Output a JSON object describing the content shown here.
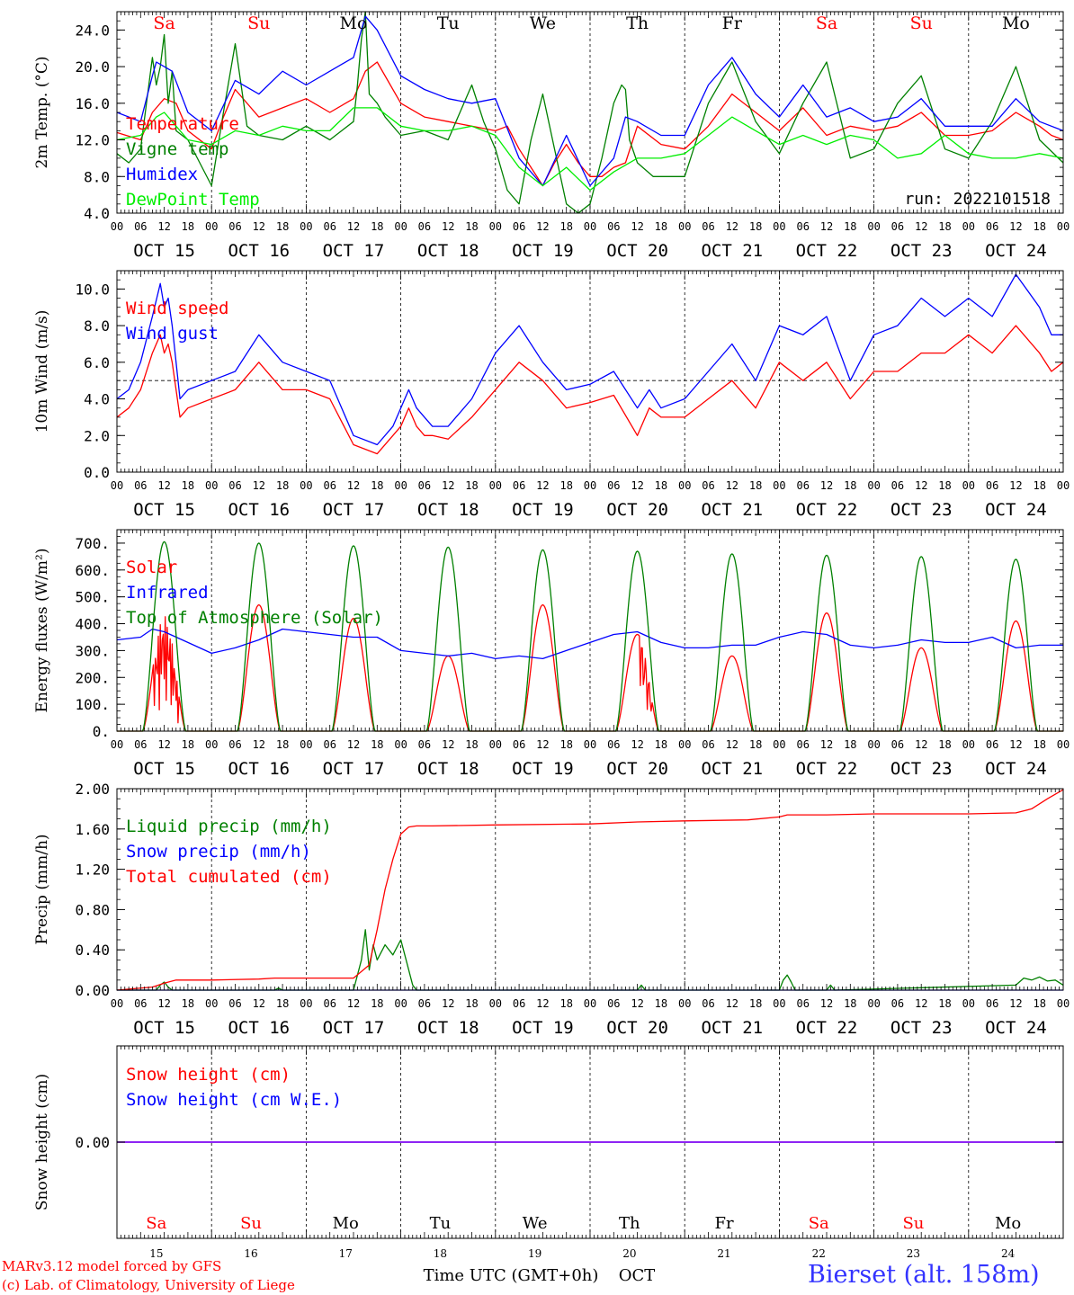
{
  "run_label": "run: 2022101518",
  "days": [
    "Sa",
    "Su",
    "Mo",
    "Tu",
    "We",
    "Th",
    "Fr",
    "Sa",
    "Su",
    "Mo"
  ],
  "weekend_idx": [
    0,
    1,
    7,
    8
  ],
  "date_labels": [
    "OCT 15",
    "OCT 16",
    "OCT 17",
    "OCT 18",
    "OCT 19",
    "OCT 20",
    "OCT 21",
    "OCT 22",
    "OCT 23",
    "OCT 24"
  ],
  "day_numbers": [
    "15",
    "16",
    "17",
    "18",
    "19",
    "20",
    "21",
    "22",
    "23",
    "24"
  ],
  "hour_labels": [
    "00",
    "06",
    "12",
    "18"
  ],
  "last_hour_label": "00",
  "xlabel": "Time UTC (GMT+0h)",
  "xlabel_month": "OCT",
  "footer_model": "MARv3.12 model forced by GFS",
  "footer_lab": "(c) Lab. of Climatology, University of Liege",
  "station": "Bierset (alt. 158m)",
  "colors": {
    "red": "#ff0000",
    "green": "#008000",
    "blue": "#0000ff",
    "lightgreen": "#00ee00",
    "purple": "#7f00ff",
    "station": "#3333ff"
  },
  "chart_data": [
    {
      "type": "line",
      "ylabel": "2m Temp. (°C)",
      "ylim": [
        4.0,
        26.0
      ],
      "yticks": [
        "4.0",
        "8.0",
        "12.0",
        "16.0",
        "20.0",
        "24.0"
      ],
      "x_unit": "hours since OCT 15 00 UTC",
      "series": [
        {
          "name": "Temperature",
          "color": "red",
          "x": [
            0,
            6,
            9,
            12,
            15,
            18,
            24,
            27,
            30,
            36,
            39,
            42,
            48,
            54,
            60,
            63,
            66,
            72,
            78,
            84,
            90,
            96,
            99,
            102,
            105,
            108,
            111,
            114,
            117,
            120,
            123,
            126,
            129,
            132,
            138,
            144,
            150,
            156,
            162,
            168,
            174,
            180,
            186,
            192,
            198,
            204,
            210,
            216,
            222,
            228,
            234,
            237,
            240
          ],
          "y": [
            12.8,
            12.0,
            15.0,
            16.5,
            16.0,
            13.0,
            11.0,
            14.5,
            17.5,
            14.5,
            15.0,
            15.5,
            16.5,
            15.0,
            16.5,
            19.5,
            20.5,
            16.0,
            14.5,
            14.0,
            13.5,
            13.0,
            13.5,
            11.0,
            9.0,
            7.0,
            9.5,
            11.5,
            9.5,
            8.0,
            8.0,
            9.0,
            9.5,
            13.5,
            11.5,
            11.0,
            13.5,
            17.0,
            15.0,
            13.0,
            15.5,
            12.5,
            13.5,
            13.0,
            13.5,
            15.0,
            12.5,
            12.5,
            13.0,
            15.0,
            13.5,
            12.5,
            12.0
          ]
        },
        {
          "name": "Vigne temp",
          "color": "green",
          "x": [
            0,
            3,
            6,
            9,
            10,
            11,
            12,
            13,
            14,
            15,
            18,
            24,
            27,
            30,
            33,
            36,
            42,
            48,
            54,
            60,
            61,
            62,
            63,
            64,
            65,
            66,
            68,
            72,
            78,
            84,
            90,
            93,
            96,
            99,
            102,
            105,
            108,
            111,
            114,
            117,
            120,
            123,
            126,
            128,
            129,
            130,
            132,
            136,
            144,
            150,
            156,
            162,
            168,
            174,
            180,
            186,
            192,
            198,
            204,
            210,
            216,
            222,
            228,
            234,
            240
          ],
          "y": [
            10.5,
            9.5,
            11.0,
            21.0,
            18.0,
            20.0,
            23.5,
            16.0,
            19.5,
            13.0,
            12.0,
            7.0,
            15.0,
            22.5,
            13.5,
            12.5,
            12.0,
            13.5,
            12.0,
            14.0,
            18.0,
            23.0,
            26.0,
            17.0,
            16.5,
            16.0,
            14.5,
            12.5,
            13.0,
            12.0,
            18.0,
            14.0,
            11.0,
            6.5,
            5.0,
            12.0,
            17.0,
            11.0,
            5.0,
            4.0,
            5.0,
            10.0,
            16.0,
            18.0,
            17.5,
            12.0,
            9.5,
            8.0,
            8.0,
            16.0,
            20.5,
            14.0,
            10.5,
            16.0,
            20.5,
            10.0,
            11.0,
            16.0,
            19.0,
            11.0,
            10.0,
            14.0,
            20.0,
            12.0,
            9.5
          ]
        },
        {
          "name": "Humidex",
          "color": "blue",
          "x": [
            0,
            6,
            9,
            10,
            12,
            14,
            18,
            24,
            30,
            36,
            42,
            48,
            54,
            60,
            63,
            66,
            72,
            78,
            84,
            90,
            96,
            102,
            108,
            114,
            120,
            126,
            129,
            132,
            138,
            144,
            150,
            156,
            162,
            168,
            174,
            180,
            186,
            192,
            198,
            204,
            210,
            216,
            222,
            228,
            234,
            240
          ],
          "y": [
            15.0,
            14.0,
            19.0,
            20.5,
            20.0,
            19.5,
            15.0,
            13.0,
            18.5,
            17.0,
            19.5,
            18.0,
            19.5,
            21.0,
            25.5,
            24.0,
            19.0,
            17.5,
            16.5,
            16.0,
            16.5,
            10.0,
            7.0,
            12.5,
            7.0,
            10.0,
            14.5,
            14.0,
            12.5,
            12.5,
            18.0,
            21.0,
            17.0,
            14.5,
            18.0,
            14.5,
            15.5,
            14.0,
            14.5,
            16.5,
            13.5,
            13.5,
            13.5,
            16.5,
            14.0,
            13.0
          ]
        },
        {
          "name": "DewPoint Temp",
          "color": "lightgreen",
          "x": [
            0,
            6,
            10,
            12,
            14,
            18,
            24,
            30,
            36,
            42,
            48,
            54,
            60,
            66,
            72,
            78,
            84,
            90,
            96,
            102,
            108,
            114,
            120,
            126,
            132,
            138,
            144,
            150,
            156,
            162,
            168,
            174,
            180,
            186,
            192,
            198,
            204,
            210,
            216,
            222,
            228,
            234,
            240
          ],
          "y": [
            12.0,
            12.5,
            14.5,
            15.0,
            14.0,
            12.0,
            11.5,
            13.0,
            12.5,
            13.5,
            13.0,
            13.0,
            15.5,
            15.5,
            13.5,
            13.0,
            13.0,
            13.5,
            12.5,
            9.0,
            7.0,
            9.0,
            6.5,
            8.5,
            10.0,
            10.0,
            10.5,
            12.5,
            14.5,
            13.0,
            11.5,
            12.5,
            11.5,
            12.5,
            12.0,
            10.0,
            10.5,
            12.5,
            10.5,
            10.0,
            10.0,
            10.5,
            10.0
          ]
        }
      ],
      "dashed_lines_y": []
    },
    {
      "type": "line",
      "ylabel": "10m Wind (m/s)",
      "ylim": [
        0.0,
        11.0
      ],
      "yticks": [
        "0.0",
        "2.0",
        "4.0",
        "6.0",
        "8.0",
        "10.0"
      ],
      "dashed_lines_y": [
        5.0
      ],
      "series": [
        {
          "name": "Wind speed",
          "color": "red",
          "x": [
            0,
            3,
            6,
            9,
            11,
            12,
            13,
            14,
            16,
            18,
            24,
            30,
            36,
            42,
            48,
            54,
            60,
            66,
            70,
            72,
            74,
            76,
            78,
            80,
            84,
            90,
            96,
            102,
            108,
            114,
            120,
            126,
            132,
            135,
            138,
            144,
            150,
            156,
            162,
            168,
            174,
            180,
            186,
            192,
            198,
            204,
            210,
            216,
            222,
            228,
            234,
            237,
            240
          ],
          "y": [
            3.0,
            3.5,
            4.5,
            6.5,
            7.5,
            6.5,
            7.0,
            6.0,
            3.0,
            3.5,
            4.0,
            4.5,
            6.0,
            4.5,
            4.5,
            4.0,
            1.5,
            1.0,
            2.0,
            2.5,
            3.5,
            2.5,
            2.0,
            2.0,
            1.8,
            3.0,
            4.5,
            6.0,
            5.0,
            3.5,
            3.8,
            4.2,
            2.0,
            3.5,
            3.0,
            3.0,
            4.0,
            5.0,
            3.5,
            6.0,
            5.0,
            6.0,
            4.0,
            5.5,
            5.5,
            6.5,
            6.5,
            7.5,
            6.5,
            8.0,
            6.5,
            5.5,
            6.0
          ]
        },
        {
          "name": "Wind gust",
          "color": "blue",
          "x": [
            0,
            3,
            6,
            9,
            11,
            12,
            13,
            14,
            16,
            18,
            24,
            30,
            36,
            42,
            48,
            54,
            60,
            66,
            70,
            72,
            74,
            76,
            78,
            80,
            84,
            90,
            96,
            102,
            108,
            114,
            120,
            126,
            132,
            135,
            138,
            144,
            150,
            156,
            162,
            168,
            174,
            180,
            186,
            192,
            198,
            204,
            210,
            216,
            222,
            228,
            234,
            237,
            240
          ],
          "y": [
            4.0,
            4.5,
            6.0,
            8.5,
            10.3,
            9.0,
            9.5,
            8.0,
            4.0,
            4.5,
            5.0,
            5.5,
            7.5,
            6.0,
            5.5,
            5.0,
            2.0,
            1.5,
            2.5,
            3.5,
            4.5,
            3.5,
            3.0,
            2.5,
            2.5,
            4.0,
            6.5,
            8.0,
            6.0,
            4.5,
            4.8,
            5.5,
            3.5,
            4.5,
            3.5,
            4.0,
            5.5,
            7.0,
            5.0,
            8.0,
            7.5,
            8.5,
            5.0,
            7.5,
            8.0,
            9.5,
            8.5,
            9.5,
            8.5,
            10.8,
            9.0,
            7.5,
            7.5
          ]
        }
      ]
    },
    {
      "type": "line",
      "ylabel": "Energy fluxes (W/m²)",
      "ylim": [
        0,
        750
      ],
      "yticks": [
        "0.",
        "100.",
        "200.",
        "300.",
        "400.",
        "500.",
        "600.",
        "700."
      ],
      "series": [
        {
          "name": "Solar",
          "color": "red",
          "diurnal_peaks": [
            430,
            470,
            420,
            280,
            470,
            360,
            280,
            440,
            310,
            410
          ]
        },
        {
          "name": "Infrared",
          "color": "blue",
          "x": [
            0,
            6,
            9,
            12,
            18,
            24,
            30,
            36,
            42,
            48,
            54,
            60,
            66,
            72,
            78,
            84,
            90,
            96,
            102,
            108,
            114,
            120,
            126,
            132,
            138,
            144,
            150,
            156,
            162,
            168,
            174,
            180,
            186,
            192,
            198,
            204,
            210,
            216,
            222,
            228,
            234,
            240
          ],
          "y": [
            340,
            350,
            380,
            370,
            330,
            290,
            310,
            340,
            380,
            370,
            360,
            350,
            350,
            300,
            290,
            280,
            290,
            270,
            280,
            270,
            300,
            330,
            360,
            370,
            330,
            310,
            310,
            320,
            320,
            350,
            370,
            360,
            320,
            310,
            320,
            340,
            330,
            330,
            350,
            310,
            320,
            320
          ]
        },
        {
          "name": "Top of Atmosphere (Solar)",
          "color": "green",
          "diurnal_peaks": [
            705,
            700,
            690,
            685,
            675,
            670,
            660,
            655,
            650,
            640
          ]
        }
      ]
    },
    {
      "type": "line",
      "ylabel": "Precip (mm/h)",
      "ylim": [
        0.0,
        2.0
      ],
      "yticks": [
        "0.00",
        "0.40",
        "0.80",
        "1.20",
        "1.60",
        "2.00"
      ],
      "series": [
        {
          "name": "Liquid precip (mm/h)",
          "color": "green",
          "x": [
            0,
            10,
            11,
            12,
            13,
            14,
            40,
            41,
            42,
            60,
            62,
            63,
            64,
            65,
            66,
            68,
            70,
            72,
            74,
            75,
            76,
            78,
            132,
            133,
            134,
            168,
            169,
            170,
            171,
            172,
            180,
            181,
            182,
            228,
            230,
            232,
            234,
            236,
            238,
            240
          ],
          "y": [
            0,
            0,
            0.05,
            0.08,
            0.03,
            0,
            0,
            0.02,
            0,
            0,
            0.3,
            0.6,
            0.2,
            0.45,
            0.3,
            0.45,
            0.35,
            0.5,
            0.2,
            0.05,
            0,
            0,
            0,
            0.05,
            0,
            0,
            0.1,
            0.15,
            0.08,
            0,
            0,
            0.05,
            0,
            0.05,
            0.12,
            0.1,
            0.13,
            0.09,
            0.1,
            0.05
          ]
        },
        {
          "name": "Snow precip (mm/h)",
          "color": "blue",
          "x": [
            0,
            240
          ],
          "y": [
            0,
            0
          ]
        },
        {
          "name": "Total cumulated (cm)",
          "color": "red",
          "x": [
            0,
            9,
            12,
            15,
            24,
            36,
            40,
            48,
            60,
            64,
            66,
            68,
            70,
            72,
            74,
            76,
            78,
            80,
            96,
            120,
            132,
            144,
            160,
            168,
            170,
            180,
            192,
            216,
            228,
            232,
            236,
            240
          ],
          "y": [
            0.0,
            0.03,
            0.07,
            0.1,
            0.1,
            0.11,
            0.12,
            0.12,
            0.12,
            0.25,
            0.6,
            1.0,
            1.3,
            1.55,
            1.62,
            1.63,
            1.63,
            1.63,
            1.64,
            1.65,
            1.67,
            1.68,
            1.69,
            1.72,
            1.74,
            1.74,
            1.75,
            1.75,
            1.76,
            1.8,
            1.9,
            1.99
          ]
        }
      ]
    },
    {
      "type": "line",
      "ylabel": "Snow height (cm)",
      "ylim": [
        -1.0,
        1.0
      ],
      "yticks": [
        "0.00"
      ],
      "series": [
        {
          "name": "Snow height (cm)",
          "color": "red",
          "x": [
            0,
            240
          ],
          "y": [
            0,
            0
          ]
        },
        {
          "name": "Snow height (cm W.E.)",
          "color": "blue",
          "x": [
            0,
            240
          ],
          "y": [
            0,
            0
          ]
        }
      ]
    }
  ]
}
